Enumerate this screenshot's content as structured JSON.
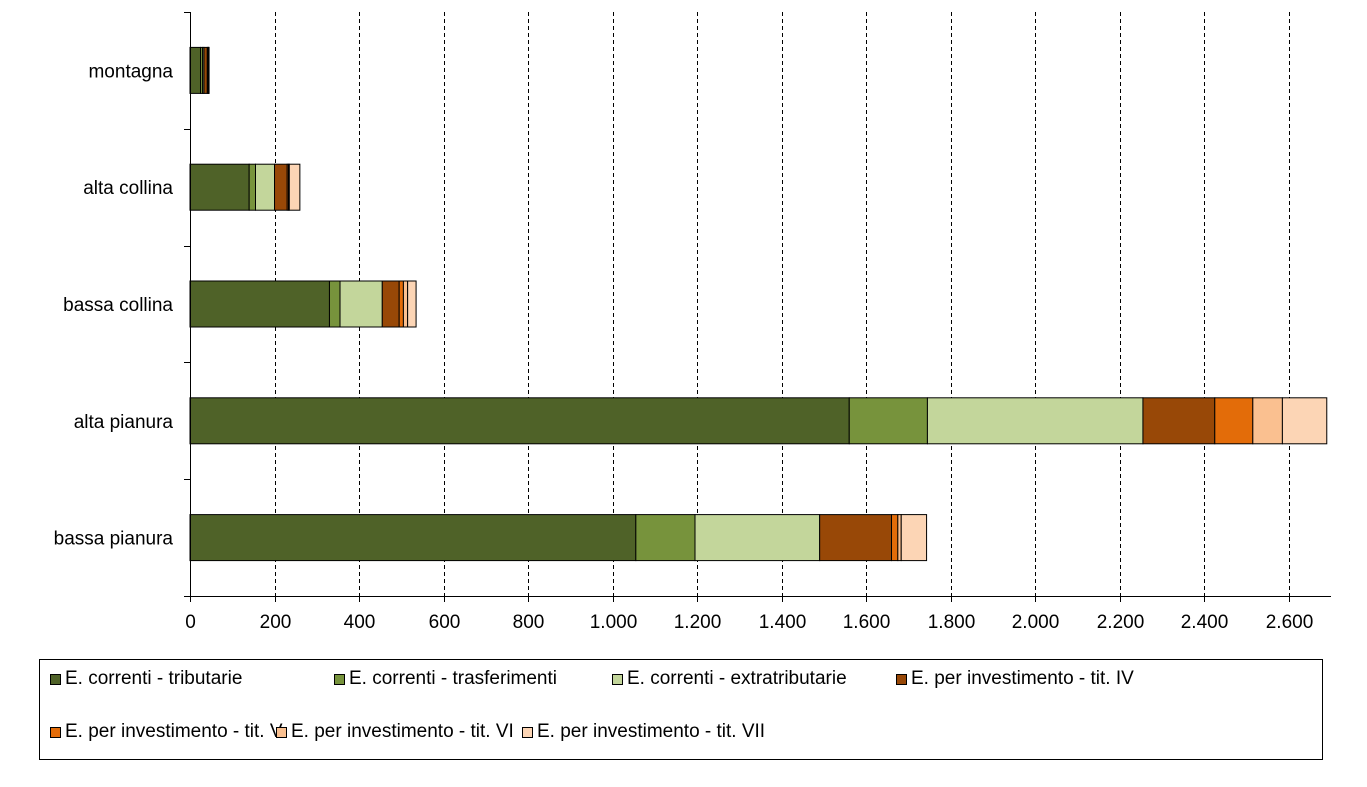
{
  "chart_data": {
    "type": "bar",
    "orientation": "horizontal",
    "stacked": true,
    "categories": [
      "montagna",
      "alta collina",
      "bassa collina",
      "alta pianura",
      "bassa pianura"
    ],
    "xlim": [
      0,
      2700
    ],
    "x_ticks": [
      0,
      200,
      400,
      600,
      800,
      1000,
      1200,
      1400,
      1600,
      1800,
      2000,
      2200,
      2400,
      2600
    ],
    "x_tick_labels": [
      "0",
      "200",
      "400",
      "600",
      "800",
      "1.000",
      "1.200",
      "1.400",
      "1.600",
      "1.800",
      "2.000",
      "2.200",
      "2.400",
      "2.600"
    ],
    "grid": "vertical dashed",
    "legend_position": "bottom",
    "series": [
      {
        "name": "E. correnti - tributarie",
        "color": "#4F6228",
        "values": [
          25,
          140,
          330,
          1560,
          1055
        ]
      },
      {
        "name": "E. correnti - trasferimenti",
        "color": "#77933C",
        "values": [
          5,
          15,
          25,
          185,
          140
        ]
      },
      {
        "name": "E. correnti - extratributarie",
        "color": "#C3D69B",
        "values": [
          3,
          45,
          100,
          510,
          295
        ]
      },
      {
        "name": "E. per investimento - tit. IV",
        "color": "#984807",
        "values": [
          8,
          30,
          40,
          170,
          170
        ]
      },
      {
        "name": "E. per investimento - tit. V",
        "color": "#E36C09",
        "values": [
          2,
          3,
          10,
          90,
          15
        ]
      },
      {
        "name": "E. per investimento - tit. VI",
        "color": "#FAC090",
        "values": [
          1,
          2,
          10,
          70,
          8
        ]
      },
      {
        "name": "E. per investimento - tit. VII",
        "color": "#FCD5B5",
        "values": [
          1,
          25,
          20,
          105,
          60
        ]
      }
    ]
  }
}
